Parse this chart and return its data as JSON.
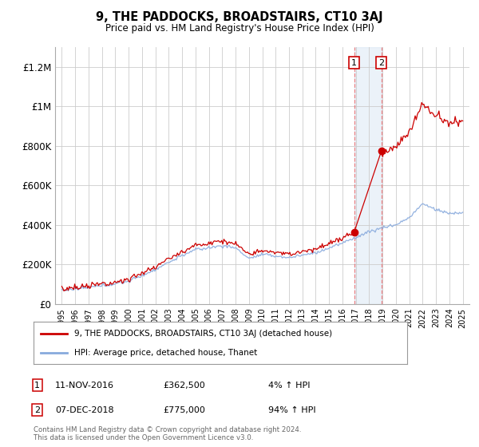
{
  "title": "9, THE PADDOCKS, BROADSTAIRS, CT10 3AJ",
  "subtitle": "Price paid vs. HM Land Registry's House Price Index (HPI)",
  "ylabel_ticks": [
    "£0",
    "£200K",
    "£400K",
    "£600K",
    "£800K",
    "£1M",
    "£1.2M"
  ],
  "ylim": [
    0,
    1300000
  ],
  "xlim": [
    1994.5,
    2025.5
  ],
  "ytick_vals": [
    0,
    200000,
    400000,
    600000,
    800000,
    1000000,
    1200000
  ],
  "purchase1_year": 2016.87,
  "purchase1_price": 362500,
  "purchase1_label": "11-NOV-2016",
  "purchase1_pct": "4%",
  "purchase2_year": 2018.92,
  "purchase2_price": 775000,
  "purchase2_label": "07-DEC-2018",
  "purchase2_pct": "94%",
  "legend_line1": "9, THE PADDOCKS, BROADSTAIRS, CT10 3AJ (detached house)",
  "legend_line2": "HPI: Average price, detached house, Thanet",
  "footer": "Contains HM Land Registry data © Crown copyright and database right 2024.\nThis data is licensed under the Open Government Licence v3.0.",
  "line_color_red": "#cc0000",
  "line_color_blue": "#88aadd",
  "background_color": "#ffffff",
  "grid_color": "#cccccc",
  "shade_color": "#c8dcf0"
}
